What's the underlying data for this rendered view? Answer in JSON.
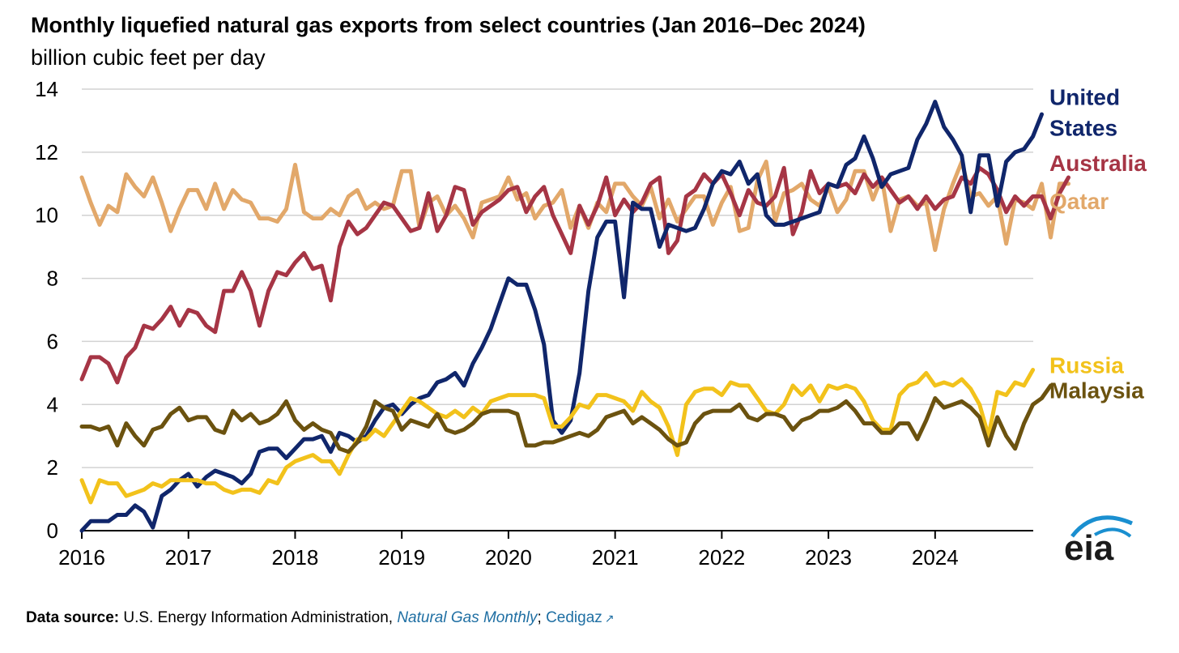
{
  "title": "Monthly liquefied natural gas exports from select countries (Jan 2016–Dec 2024)",
  "subtitle": "billion cubic feet per day",
  "footer": {
    "prefix": "Data source:",
    "text": " U.S. Energy Information Administration, ",
    "link1": "Natural Gas Monthly",
    "sep": "; ",
    "link2": "Cedigaz",
    "ext_icon": "external-link-icon"
  },
  "logo_text": "eia",
  "chart_data": {
    "type": "line",
    "ylabel": "billion cubic feet per day",
    "xlim": [
      2016,
      2024.92
    ],
    "ylim": [
      0,
      14
    ],
    "yticks": [
      0,
      2,
      4,
      6,
      8,
      10,
      12,
      14
    ],
    "xticks": [
      2016,
      2017,
      2018,
      2019,
      2020,
      2021,
      2022,
      2023,
      2024
    ],
    "x_start_year": 2016,
    "grid": true,
    "legend": "right-side labels",
    "series": [
      {
        "name": "Qatar",
        "label": "Qatar",
        "color": "#e2a86a",
        "label_y": 10.2,
        "values": [
          11.2,
          10.4,
          9.7,
          10.3,
          10.1,
          11.3,
          10.9,
          10.6,
          11.2,
          10.4,
          9.5,
          10.2,
          10.8,
          10.8,
          10.2,
          11.0,
          10.2,
          10.8,
          10.5,
          10.4,
          9.9,
          9.9,
          9.8,
          10.2,
          11.6,
          10.1,
          9.9,
          9.9,
          10.2,
          10.0,
          10.6,
          10.8,
          10.2,
          10.4,
          10.2,
          10.3,
          11.4,
          11.4,
          9.6,
          10.4,
          10.6,
          10.0,
          10.3,
          9.9,
          9.3,
          10.4,
          10.5,
          10.6,
          11.2,
          10.5,
          10.7,
          9.9,
          10.3,
          10.4,
          10.8,
          9.6,
          10.3,
          9.6,
          10.4,
          10.1,
          11.0,
          11.0,
          10.6,
          10.3,
          10.9,
          9.9,
          10.5,
          9.8,
          10.2,
          10.6,
          10.6,
          9.7,
          10.4,
          10.9,
          9.5,
          9.6,
          11.1,
          11.7,
          9.8,
          10.7,
          10.8,
          11.0,
          10.5,
          10.3,
          10.9,
          10.1,
          10.5,
          11.4,
          11.4,
          10.5,
          11.2,
          9.5,
          10.5,
          10.6,
          10.3,
          10.4,
          8.9,
          10.2,
          11.0,
          11.7,
          10.6,
          10.7,
          10.3,
          10.6,
          9.1,
          10.5,
          10.4,
          10.2,
          11.0,
          9.3,
          11.0,
          11.0
        ]
      },
      {
        "name": "Australia",
        "label": "Australia",
        "color": "#a63545",
        "label_y": 11.4,
        "values": [
          4.8,
          5.5,
          5.5,
          5.3,
          4.7,
          5.5,
          5.8,
          6.5,
          6.4,
          6.7,
          7.1,
          6.5,
          7.0,
          6.9,
          6.5,
          6.3,
          7.6,
          7.6,
          8.2,
          7.6,
          6.5,
          7.6,
          8.2,
          8.1,
          8.5,
          8.8,
          8.3,
          8.4,
          7.3,
          9.0,
          9.8,
          9.4,
          9.6,
          10.0,
          10.4,
          10.3,
          9.9,
          9.5,
          9.6,
          10.7,
          9.5,
          10.0,
          10.9,
          10.8,
          9.7,
          10.1,
          10.3,
          10.5,
          10.8,
          10.9,
          10.1,
          10.6,
          10.9,
          10.0,
          9.4,
          8.8,
          10.3,
          9.7,
          10.3,
          11.2,
          10.0,
          10.5,
          10.1,
          10.4,
          11.0,
          11.2,
          8.8,
          9.2,
          10.6,
          10.8,
          11.3,
          11.0,
          11.3,
          10.7,
          10.0,
          10.8,
          10.4,
          10.3,
          10.6,
          11.5,
          9.4,
          10.1,
          11.4,
          10.7,
          11.0,
          10.9,
          11.0,
          10.7,
          11.3,
          10.9,
          11.2,
          10.8,
          10.4,
          10.6,
          10.2,
          10.6,
          10.2,
          10.5,
          10.6,
          11.2,
          11.0,
          11.5,
          11.3,
          10.8,
          10.1,
          10.6,
          10.3,
          10.6,
          10.6,
          9.9,
          10.7,
          11.2
        ]
      },
      {
        "name": "United States",
        "label": "United States",
        "color": "#10266b",
        "label_y": 13.5,
        "values": [
          0.0,
          0.3,
          0.3,
          0.3,
          0.5,
          0.5,
          0.8,
          0.6,
          0.1,
          1.1,
          1.3,
          1.6,
          1.8,
          1.4,
          1.7,
          1.9,
          1.8,
          1.7,
          1.5,
          1.8,
          2.5,
          2.6,
          2.6,
          2.3,
          2.6,
          2.9,
          2.9,
          3.0,
          2.5,
          3.1,
          3.0,
          2.8,
          3.0,
          3.5,
          3.9,
          4.0,
          3.7,
          4.0,
          4.2,
          4.3,
          4.7,
          4.8,
          5.0,
          4.6,
          5.3,
          5.8,
          6.4,
          7.2,
          8.0,
          7.8,
          7.8,
          7.0,
          5.9,
          3.5,
          3.1,
          3.5,
          5.0,
          7.6,
          9.3,
          9.8,
          9.8,
          7.4,
          10.4,
          10.2,
          10.2,
          9.0,
          9.7,
          9.6,
          9.5,
          9.6,
          10.2,
          11.0,
          11.4,
          11.3,
          11.7,
          11.0,
          11.3,
          10.0,
          9.7,
          9.7,
          9.8,
          9.9,
          10.0,
          10.1,
          11.0,
          10.9,
          11.6,
          11.8,
          12.5,
          11.8,
          10.9,
          11.3,
          11.4,
          11.5,
          12.4,
          12.9,
          13.6,
          12.8,
          12.4,
          11.9,
          10.1,
          11.9,
          11.9,
          10.3,
          11.7,
          12.0,
          12.1,
          12.5,
          13.2
        ]
      },
      {
        "name": "Russia",
        "label": "Russia",
        "color": "#f2c21b",
        "label_y": 5.0,
        "values": [
          1.6,
          0.9,
          1.6,
          1.5,
          1.5,
          1.1,
          1.2,
          1.3,
          1.5,
          1.4,
          1.6,
          1.6,
          1.6,
          1.6,
          1.5,
          1.5,
          1.3,
          1.2,
          1.3,
          1.3,
          1.2,
          1.6,
          1.5,
          2.0,
          2.2,
          2.3,
          2.4,
          2.2,
          2.2,
          1.8,
          2.4,
          2.9,
          2.9,
          3.2,
          3.0,
          3.4,
          3.8,
          4.2,
          4.1,
          3.9,
          3.7,
          3.6,
          3.8,
          3.6,
          3.9,
          3.7,
          4.1,
          4.2,
          4.3,
          4.3,
          4.3,
          4.3,
          4.2,
          3.3,
          3.3,
          3.6,
          4.0,
          3.9,
          4.3,
          4.3,
          4.2,
          4.1,
          3.8,
          4.4,
          4.1,
          3.9,
          3.3,
          2.4,
          4.0,
          4.4,
          4.5,
          4.5,
          4.3,
          4.7,
          4.6,
          4.6,
          4.2,
          3.8,
          3.7,
          4.0,
          4.6,
          4.3,
          4.6,
          4.1,
          4.6,
          4.5,
          4.6,
          4.5,
          4.1,
          3.5,
          3.2,
          3.2,
          4.3,
          4.6,
          4.7,
          5.0,
          4.6,
          4.7,
          4.6,
          4.8,
          4.5,
          4.0,
          3.0,
          4.4,
          4.3,
          4.7,
          4.6,
          5.1
        ]
      },
      {
        "name": "Malaysia",
        "label": "Malaysia",
        "color": "#6b520f",
        "label_y": 4.2,
        "values": [
          3.3,
          3.3,
          3.2,
          3.3,
          2.7,
          3.4,
          3.0,
          2.7,
          3.2,
          3.3,
          3.7,
          3.9,
          3.5,
          3.6,
          3.6,
          3.2,
          3.1,
          3.8,
          3.5,
          3.7,
          3.4,
          3.5,
          3.7,
          4.1,
          3.5,
          3.2,
          3.4,
          3.2,
          3.1,
          2.6,
          2.5,
          2.8,
          3.3,
          4.1,
          3.9,
          3.8,
          3.2,
          3.5,
          3.4,
          3.3,
          3.7,
          3.2,
          3.1,
          3.2,
          3.4,
          3.7,
          3.8,
          3.8,
          3.8,
          3.7,
          2.7,
          2.7,
          2.8,
          2.8,
          2.9,
          3.0,
          3.1,
          3.0,
          3.2,
          3.6,
          3.7,
          3.8,
          3.4,
          3.6,
          3.4,
          3.2,
          2.9,
          2.7,
          2.8,
          3.4,
          3.7,
          3.8,
          3.8,
          3.8,
          4.0,
          3.6,
          3.5,
          3.7,
          3.7,
          3.6,
          3.2,
          3.5,
          3.6,
          3.8,
          3.8,
          3.9,
          4.1,
          3.8,
          3.4,
          3.4,
          3.1,
          3.1,
          3.4,
          3.4,
          2.9,
          3.5,
          4.2,
          3.9,
          4.0,
          4.1,
          3.9,
          3.6,
          2.7,
          3.6,
          3.0,
          2.6,
          3.4,
          4.0,
          4.2,
          4.6
        ]
      }
    ]
  }
}
